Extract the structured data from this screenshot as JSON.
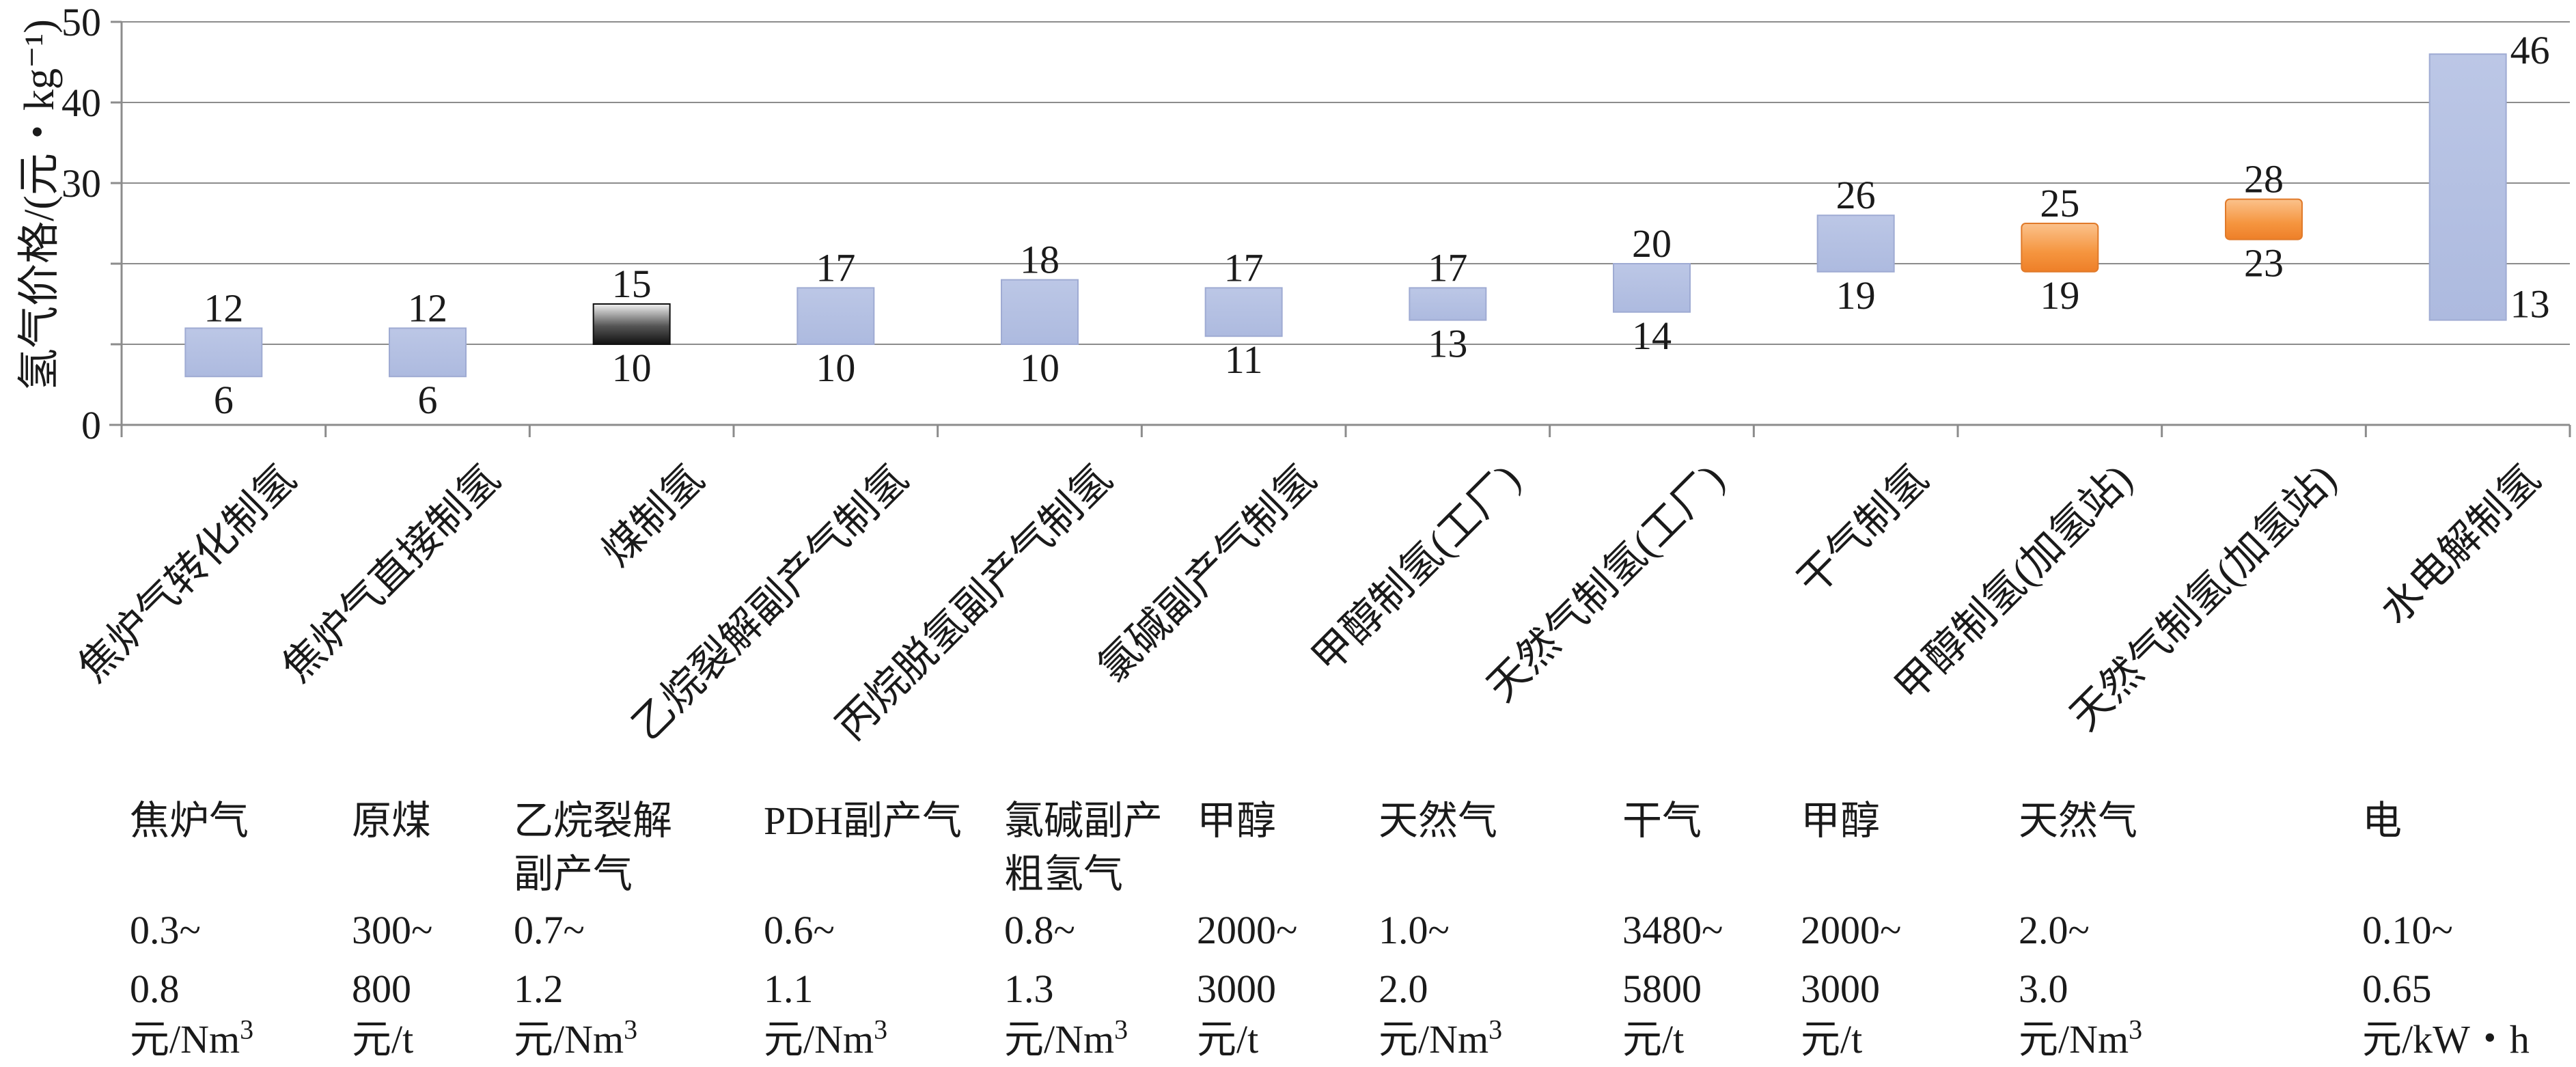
{
  "chart_data": {
    "type": "bar",
    "subtype": "floating-range",
    "ylabel": "氢气价格/(元・kg⁻¹)",
    "ylim": [
      0,
      50
    ],
    "yticks": [
      0,
      30,
      40,
      50
    ],
    "grid": true,
    "categories": [
      "焦炉气转化制氢",
      "焦炉气直接制氢",
      "煤制氢",
      "乙烷裂解副产气制氢",
      "丙烷脱氢副产气制氢",
      "氯碱副产气制氢",
      "甲醇制氢(工厂)",
      "天然气制氢(工厂)",
      "干气制氢",
      "甲醇制氢(加氢站)",
      "天然气制氢(加氢站)",
      "水电解制氢"
    ],
    "low": [
      6,
      6,
      10,
      10,
      10,
      11,
      13,
      14,
      19,
      19,
      23,
      13
    ],
    "high": [
      12,
      12,
      15,
      17,
      18,
      17,
      17,
      20,
      26,
      25,
      28,
      46
    ],
    "low_labels": [
      "6",
      "6",
      "10",
      "10",
      "10",
      "11",
      "13",
      "14",
      "19",
      "19",
      "23",
      "13"
    ],
    "high_labels": [
      "12",
      "12",
      "15",
      "17",
      "18",
      "17",
      "17",
      "20",
      "26",
      "25",
      "28",
      "46"
    ],
    "bar_style": [
      "blue",
      "blue",
      "black",
      "blue",
      "blue",
      "blue",
      "blue",
      "blue",
      "blue",
      "orange",
      "orange",
      "blue"
    ],
    "colors": {
      "blue": "#b4c0e2",
      "black": "#222222",
      "orange": "#f59a4c",
      "axis": "#8c8c8c"
    }
  },
  "feedstock_table": [
    {
      "name": [
        "焦炉气"
      ],
      "price": [
        "0.3~",
        "0.8"
      ],
      "unit": "元/Nm",
      "sup": "3"
    },
    {
      "name": [
        "原煤"
      ],
      "price": [
        "300~",
        "800"
      ],
      "unit": "元/t",
      "sup": ""
    },
    {
      "name": [
        "乙烷裂解",
        "副产气"
      ],
      "price": [
        "0.7~",
        "1.2"
      ],
      "unit": "元/Nm",
      "sup": "3"
    },
    {
      "name": [
        "PDH副产气"
      ],
      "price": [
        "0.6~",
        "1.1"
      ],
      "unit": "元/Nm",
      "sup": "3"
    },
    {
      "name": [
        "氯碱副产",
        "粗氢气"
      ],
      "price": [
        "0.8~",
        "1.3"
      ],
      "unit": "元/Nm",
      "sup": "3"
    },
    {
      "name": [
        "甲醇"
      ],
      "price": [
        "2000~",
        "3000"
      ],
      "unit": "元/t",
      "sup": ""
    },
    {
      "name": [
        "天然气"
      ],
      "price": [
        "1.0~",
        "2.0"
      ],
      "unit": "元/Nm",
      "sup": "3"
    },
    {
      "name": [
        "干气"
      ],
      "price": [
        "3480~",
        "5800"
      ],
      "unit": "元/t",
      "sup": ""
    },
    {
      "name": [
        "甲醇"
      ],
      "price": [
        "2000~",
        "3000"
      ],
      "unit": "元/t",
      "sup": ""
    },
    {
      "name": [
        "天然气"
      ],
      "price": [
        "2.0~",
        "3.0"
      ],
      "unit": "元/Nm",
      "sup": "3"
    },
    {
      "name": [
        "电"
      ],
      "price": [
        "0.10~",
        "0.65"
      ],
      "unit": "元/kW・h",
      "sup": ""
    }
  ]
}
